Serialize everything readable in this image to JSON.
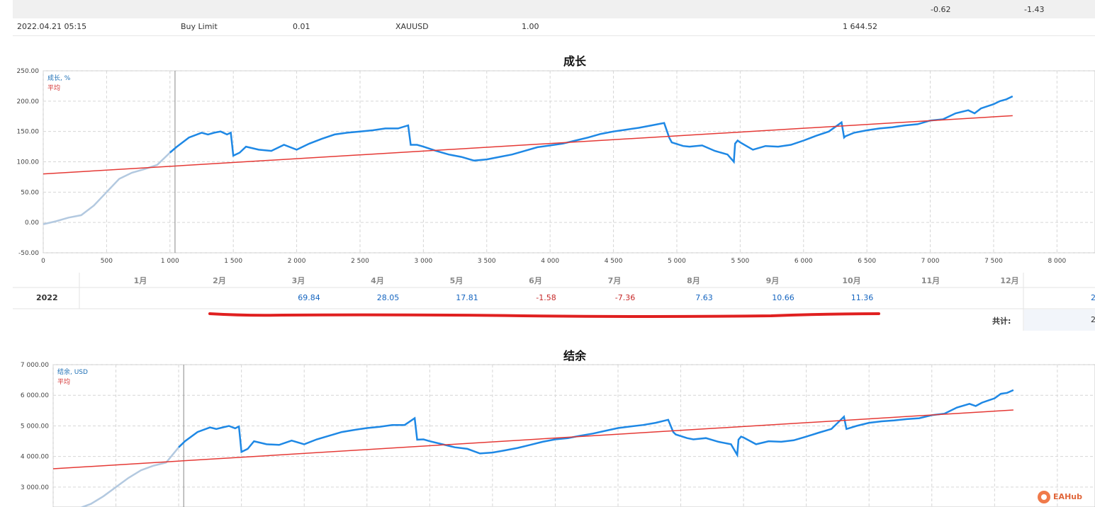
{
  "summary": {
    "val1": "-0.62",
    "val2": "-1.43"
  },
  "order": {
    "time": "2022.04.21 05:15",
    "type": "Buy Limit",
    "volume": "0.01",
    "symbol": "XAUUSD",
    "price": "1.00",
    "price2": "1 644.52"
  },
  "monthly": {
    "months": [
      "1月",
      "2月",
      "3月",
      "4月",
      "5月",
      "6月",
      "7月",
      "8月",
      "9月",
      "10月",
      "11月",
      "12月"
    ],
    "year": "2022",
    "values": [
      "",
      "",
      "69.84",
      "28.05",
      "17.81",
      "-1.58",
      "-7.36",
      "7.63",
      "10.66",
      "11.36",
      "",
      ""
    ],
    "year_total_partial": "2",
    "total_label": "共计:",
    "total_partial": "2"
  },
  "colors": {
    "growth": "#1e88e5",
    "early": "#b3c9e0",
    "average": "#e53935",
    "negative": "#c62828",
    "positive": "#1565c0"
  },
  "watermark": {
    "text": "EAHub",
    "icon": "eahub-logo-icon"
  },
  "chart_data": [
    {
      "type": "line",
      "title": "成长",
      "legend": [
        "成长, %",
        "平均"
      ],
      "x_ticks": [
        "0",
        "500",
        "1 000",
        "1 500",
        "2 000",
        "2 500",
        "3 000",
        "3 500",
        "4 000",
        "4 500",
        "5 000",
        "5 500",
        "6 000",
        "6 500",
        "7 000",
        "7 500",
        "8 000"
      ],
      "y_ticks": [
        "250.00",
        "200.00",
        "150.00",
        "100.00",
        "50.00",
        "0.00",
        "-50.00"
      ],
      "xlim": [
        0,
        8300
      ],
      "ylim": [
        -50,
        250
      ],
      "marker_x": 1040,
      "series": [
        {
          "name": "成长, %",
          "x": [
            0,
            100,
            200,
            300,
            400,
            500,
            600,
            700,
            800,
            900,
            1000,
            1050,
            1150,
            1250,
            1300,
            1350,
            1400,
            1450,
            1480,
            1500,
            1550,
            1600,
            1700,
            1800,
            1900,
            2000,
            2100,
            2200,
            2300,
            2400,
            2500,
            2600,
            2700,
            2800,
            2880,
            2900,
            2950,
            3000,
            3100,
            3200,
            3300,
            3400,
            3500,
            3600,
            3700,
            3800,
            3900,
            4000,
            4100,
            4200,
            4300,
            4400,
            4500,
            4600,
            4700,
            4800,
            4900,
            4940,
            4960,
            5050,
            5100,
            5200,
            5300,
            5400,
            5450,
            5460,
            5480,
            5500,
            5600,
            5700,
            5800,
            5900,
            6000,
            6100,
            6200,
            6300,
            6320,
            6330,
            6400,
            6500,
            6600,
            6700,
            6800,
            6900,
            7000,
            7100,
            7200,
            7300,
            7350,
            7400,
            7500,
            7550,
            7600,
            7650
          ],
          "y": [
            -3,
            2,
            8,
            12,
            28,
            50,
            72,
            82,
            88,
            95,
            115,
            124,
            140,
            148,
            145,
            148,
            150,
            145,
            148,
            110,
            115,
            125,
            120,
            118,
            128,
            120,
            130,
            138,
            145,
            148,
            150,
            152,
            155,
            155,
            160,
            128,
            128,
            125,
            118,
            112,
            108,
            102,
            104,
            108,
            112,
            118,
            124,
            127,
            130,
            135,
            140,
            146,
            150,
            153,
            156,
            160,
            164,
            140,
            132,
            126,
            125,
            127,
            118,
            112,
            100,
            130,
            135,
            132,
            120,
            126,
            125,
            128,
            135,
            143,
            150,
            165,
            140,
            142,
            148,
            152,
            155,
            157,
            160,
            162,
            168,
            170,
            180,
            185,
            180,
            188,
            195,
            200,
            203,
            208
          ]
        },
        {
          "name": "平均",
          "x": [
            0,
            7650
          ],
          "y": [
            80,
            176
          ]
        }
      ]
    },
    {
      "type": "line",
      "title": "结余",
      "legend": [
        "结余, USD",
        "平均"
      ],
      "y_ticks": [
        "7 000.00",
        "6 000.00",
        "5 000.00",
        "4 000.00",
        "3 000.00"
      ],
      "ylim": [
        2350,
        7000
      ],
      "xlim": [
        0,
        8300
      ],
      "series": [
        {
          "name": "结余, USD",
          "x": [
            0,
            100,
            200,
            300,
            400,
            500,
            600,
            700,
            800,
            900,
            1000,
            1050,
            1150,
            1250,
            1300,
            1350,
            1400,
            1450,
            1480,
            1500,
            1550,
            1600,
            1700,
            1800,
            1900,
            2000,
            2100,
            2200,
            2300,
            2400,
            2500,
            2600,
            2700,
            2800,
            2880,
            2900,
            2950,
            3000,
            3100,
            3200,
            3300,
            3400,
            3500,
            3600,
            3700,
            3800,
            3900,
            4000,
            4100,
            4200,
            4300,
            4400,
            4500,
            4600,
            4700,
            4800,
            4900,
            4940,
            4960,
            5050,
            5100,
            5200,
            5300,
            5400,
            5450,
            5460,
            5480,
            5500,
            5600,
            5700,
            5800,
            5900,
            6000,
            6100,
            6200,
            6300,
            6320,
            6330,
            6400,
            6500,
            6600,
            6700,
            6800,
            6900,
            7000,
            7100,
            7200,
            7300,
            7350,
            7400,
            7500,
            7550,
            7600,
            7650
          ],
          "y": [
            2000,
            2100,
            2300,
            2450,
            2700,
            3000,
            3300,
            3550,
            3700,
            3800,
            4300,
            4500,
            4800,
            4950,
            4900,
            4950,
            5000,
            4920,
            4980,
            4150,
            4250,
            4500,
            4400,
            4380,
            4520,
            4400,
            4560,
            4680,
            4800,
            4870,
            4930,
            4970,
            5030,
            5030,
            5250,
            4550,
            4560,
            4500,
            4400,
            4300,
            4250,
            4100,
            4130,
            4200,
            4280,
            4380,
            4480,
            4560,
            4600,
            4680,
            4750,
            4840,
            4930,
            4980,
            5030,
            5100,
            5200,
            4800,
            4720,
            4600,
            4560,
            4600,
            4480,
            4400,
            4050,
            4550,
            4650,
            4620,
            4400,
            4500,
            4480,
            4530,
            4650,
            4780,
            4900,
            5300,
            4900,
            4910,
            5000,
            5100,
            5150,
            5180,
            5220,
            5250,
            5350,
            5400,
            5600,
            5720,
            5650,
            5760,
            5900,
            6050,
            6080,
            6170
          ]
        },
        {
          "name": "平均",
          "x": [
            0,
            7650
          ],
          "y": [
            3600,
            5520
          ]
        }
      ]
    }
  ]
}
